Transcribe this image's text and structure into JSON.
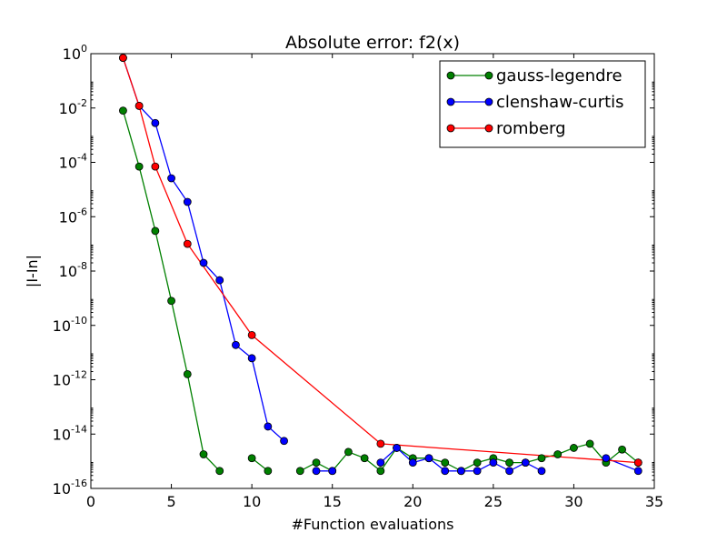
{
  "chart_data": {
    "type": "line",
    "title": "Absolute error: f2(x)",
    "xlabel": "#Function evaluations",
    "ylabel": "|I-In|",
    "xlim": [
      0,
      35
    ],
    "ylim": [
      1e-16,
      1
    ],
    "yscale": "log",
    "xticks": [
      0,
      5,
      10,
      15,
      20,
      25,
      30,
      35
    ],
    "yticks": [
      {
        "base": "10",
        "exp": "0"
      },
      {
        "base": "10",
        "exp": "-2"
      },
      {
        "base": "10",
        "exp": "-4"
      },
      {
        "base": "10",
        "exp": "-6"
      },
      {
        "base": "10",
        "exp": "-8"
      },
      {
        "base": "10",
        "exp": "-10"
      },
      {
        "base": "10",
        "exp": "-12"
      },
      {
        "base": "10",
        "exp": "-14"
      },
      {
        "base": "10",
        "exp": "-16"
      }
    ],
    "grid": false,
    "legend_position": "top-right",
    "series": [
      {
        "name": "gauss-legendre",
        "color": "#008000",
        "segments": [
          {
            "x": [
              2,
              3,
              4,
              5,
              6,
              7,
              8
            ],
            "y": [
              0.008,
              7e-05,
              3e-07,
              8e-10,
              1.6e-12,
              1.8e-15,
              4.4e-16
            ]
          },
          {
            "x": [
              10,
              11
            ],
            "y": [
              1.3e-15,
              4.4e-16
            ]
          },
          {
            "x": [
              13,
              14,
              15,
              16,
              17,
              18,
              19,
              20,
              21,
              22,
              23,
              24,
              25,
              26,
              27,
              28,
              29,
              30,
              31,
              32,
              33,
              34
            ],
            "y": [
              4.4e-16,
              8.9e-16,
              4.4e-16,
              2.2e-15,
              1.3e-15,
              4.4e-16,
              3.1e-15,
              1.3e-15,
              1.3e-15,
              8.9e-16,
              4.4e-16,
              8.9e-16,
              1.3e-15,
              8.9e-16,
              8.9e-16,
              1.3e-15,
              1.8e-15,
              3.1e-15,
              4.4e-15,
              8.9e-16,
              2.7e-15,
              8.9e-16
            ]
          }
        ]
      },
      {
        "name": "clenshaw-curtis",
        "color": "#0000ff",
        "segments": [
          {
            "x": [
              2,
              3,
              4,
              5,
              6,
              7,
              8,
              9,
              10,
              11,
              12
            ],
            "y": [
              0.7,
              0.012,
              0.0028,
              2.6e-05,
              3.5e-06,
              2e-08,
              4.6e-09,
              1.9e-11,
              6.2e-12,
              1.9e-14,
              5.6e-15
            ]
          },
          {
            "x": [
              14,
              15
            ],
            "y": [
              4.4e-16,
              4.4e-16
            ]
          },
          {
            "x": [
              18,
              19,
              20,
              21,
              22,
              23,
              24,
              25,
              26,
              27,
              28
            ],
            "y": [
              8.9e-16,
              3.1e-15,
              8.9e-16,
              1.3e-15,
              4.4e-16,
              4.4e-16,
              4.4e-16,
              8.9e-16,
              4.4e-16,
              8.9e-16,
              4.4e-16
            ]
          },
          {
            "x": [
              32,
              34
            ],
            "y": [
              1.3e-15,
              4.4e-16
            ]
          }
        ]
      },
      {
        "name": "romberg",
        "color": "#ff0000",
        "segments": [
          {
            "x": [
              2,
              3,
              4,
              6,
              10,
              18,
              34
            ],
            "y": [
              0.7,
              0.012,
              7e-05,
              1e-07,
              4.4e-11,
              4.4e-15,
              8.9e-16
            ]
          }
        ]
      }
    ]
  }
}
